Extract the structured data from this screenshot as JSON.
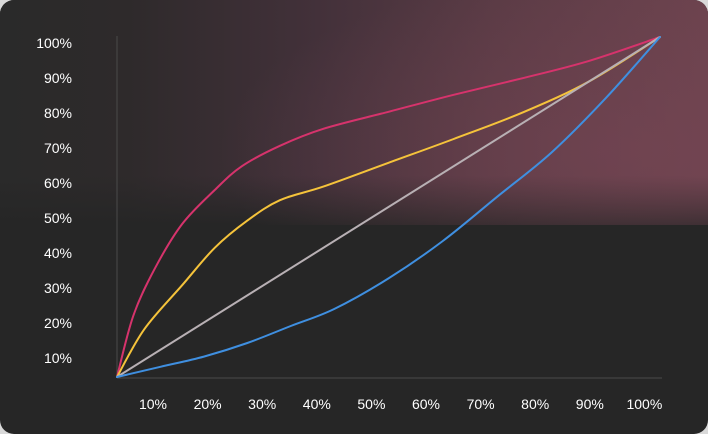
{
  "chart_data": {
    "type": "line",
    "title": "",
    "xlabel": "",
    "ylabel": "",
    "x_ticks": [
      "10%",
      "20%",
      "30%",
      "40%",
      "50%",
      "60%",
      "70%",
      "80%",
      "90%",
      "100%"
    ],
    "y_ticks": [
      "10%",
      "20%",
      "30%",
      "40%",
      "50%",
      "60%",
      "70%",
      "80%",
      "90%",
      "100%"
    ],
    "xlim": [
      0,
      100
    ],
    "ylim": [
      0,
      100
    ],
    "grid": false,
    "series": [
      {
        "color": "#d6336c",
        "x": [
          0,
          3,
          7,
          12,
          18,
          23,
          30,
          38,
          50,
          62,
          75,
          87,
          100
        ],
        "y": [
          0,
          18,
          32,
          45,
          55,
          62,
          68,
          73,
          78,
          83,
          88,
          93,
          100
        ]
      },
      {
        "color": "#f5c33b",
        "x": [
          0,
          5,
          12,
          18,
          24,
          30,
          38,
          50,
          62,
          75,
          87,
          100
        ],
        "y": [
          0,
          14,
          27,
          38,
          46,
          52,
          56,
          63,
          70,
          78,
          87,
          100
        ]
      },
      {
        "color": "#b8b0b4",
        "x": [
          0,
          100
        ],
        "y": [
          0,
          100
        ]
      },
      {
        "color": "#3f8fe0",
        "x": [
          0,
          8,
          16,
          24,
          32,
          40,
          50,
          60,
          70,
          80,
          90,
          100
        ],
        "y": [
          0,
          3,
          6,
          10,
          15,
          20,
          29,
          40,
          53,
          66,
          82,
          100
        ]
      }
    ]
  }
}
